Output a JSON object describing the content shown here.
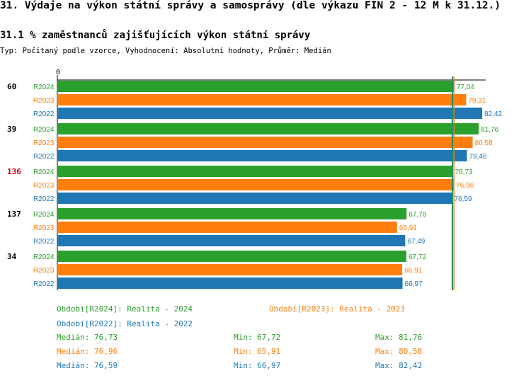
{
  "title": "31. Výdaje na výkon státní správy a samosprávy (dle výkazu FIN 2 - 12 M k 31.12.)",
  "subtitle": "31.1 % zaměstnanců zajišťujících výkon státní správy",
  "meta": "Typ: Počítaný podle vzorce, Vyhodnocení: Absolutní hodnoty, Průměr: Medián",
  "colors": {
    "R2024": "#2ca02c",
    "R2023": "#ff7f0e",
    "R2022": "#1f77b4",
    "highlight": "#dd0000"
  },
  "chart_data": {
    "type": "bar",
    "orientation": "horizontal",
    "x_axis_start_label": "0",
    "series_order": [
      "R2024",
      "R2023",
      "R2022"
    ],
    "groups": [
      {
        "label": "60",
        "highlight": false,
        "values": [
          {
            "series": "R2024",
            "value": 77.04,
            "label": "77,04"
          },
          {
            "series": "R2023",
            "value": 79.31,
            "label": "79,31"
          },
          {
            "series": "R2022",
            "value": 82.42,
            "label": "82,42"
          }
        ]
      },
      {
        "label": "39",
        "highlight": false,
        "values": [
          {
            "series": "R2024",
            "value": 81.76,
            "label": "81,76"
          },
          {
            "series": "R2023",
            "value": 80.58,
            "label": "80,58"
          },
          {
            "series": "R2022",
            "value": 79.46,
            "label": "79,46"
          }
        ]
      },
      {
        "label": "136",
        "highlight": true,
        "values": [
          {
            "series": "R2024",
            "value": 76.73,
            "label": "76,73"
          },
          {
            "series": "R2023",
            "value": 76.96,
            "label": "76,96"
          },
          {
            "series": "R2022",
            "value": 76.59,
            "label": "76,59"
          }
        ]
      },
      {
        "label": "137",
        "highlight": false,
        "values": [
          {
            "series": "R2024",
            "value": 67.76,
            "label": "67,76"
          },
          {
            "series": "R2023",
            "value": 65.91,
            "label": "65,91"
          },
          {
            "series": "R2022",
            "value": 67.49,
            "label": "67,49"
          }
        ]
      },
      {
        "label": "34",
        "highlight": false,
        "values": [
          {
            "series": "R2024",
            "value": 67.72,
            "label": "67,72"
          },
          {
            "series": "R2023",
            "value": 66.91,
            "label": "66,91"
          },
          {
            "series": "R2022",
            "value": 66.97,
            "label": "66,97"
          }
        ]
      }
    ],
    "median_lines": [
      {
        "series": "R2024",
        "value": 76.73
      },
      {
        "series": "R2023",
        "value": 76.96
      },
      {
        "series": "R2022",
        "value": 76.59
      }
    ],
    "legend": [
      {
        "series": "R2024",
        "text": "Období[R2024]: Realita - 2024"
      },
      {
        "series": "R2023",
        "text": "Období[R2023]: Realita - 2023"
      },
      {
        "series": "R2022",
        "text": "Období[R2022]: Realita - 2022"
      }
    ],
    "stats": [
      {
        "series": "R2024",
        "median": "Medián: 76,73",
        "min": "Min: 67,72",
        "max": "Max: 81,76"
      },
      {
        "series": "R2023",
        "median": "Medián: 76,96",
        "min": "Min: 65,91",
        "max": "Max: 80,58"
      },
      {
        "series": "R2022",
        "median": "Medián: 76,59",
        "min": "Min: 66,97",
        "max": "Max: 82,42"
      }
    ]
  }
}
